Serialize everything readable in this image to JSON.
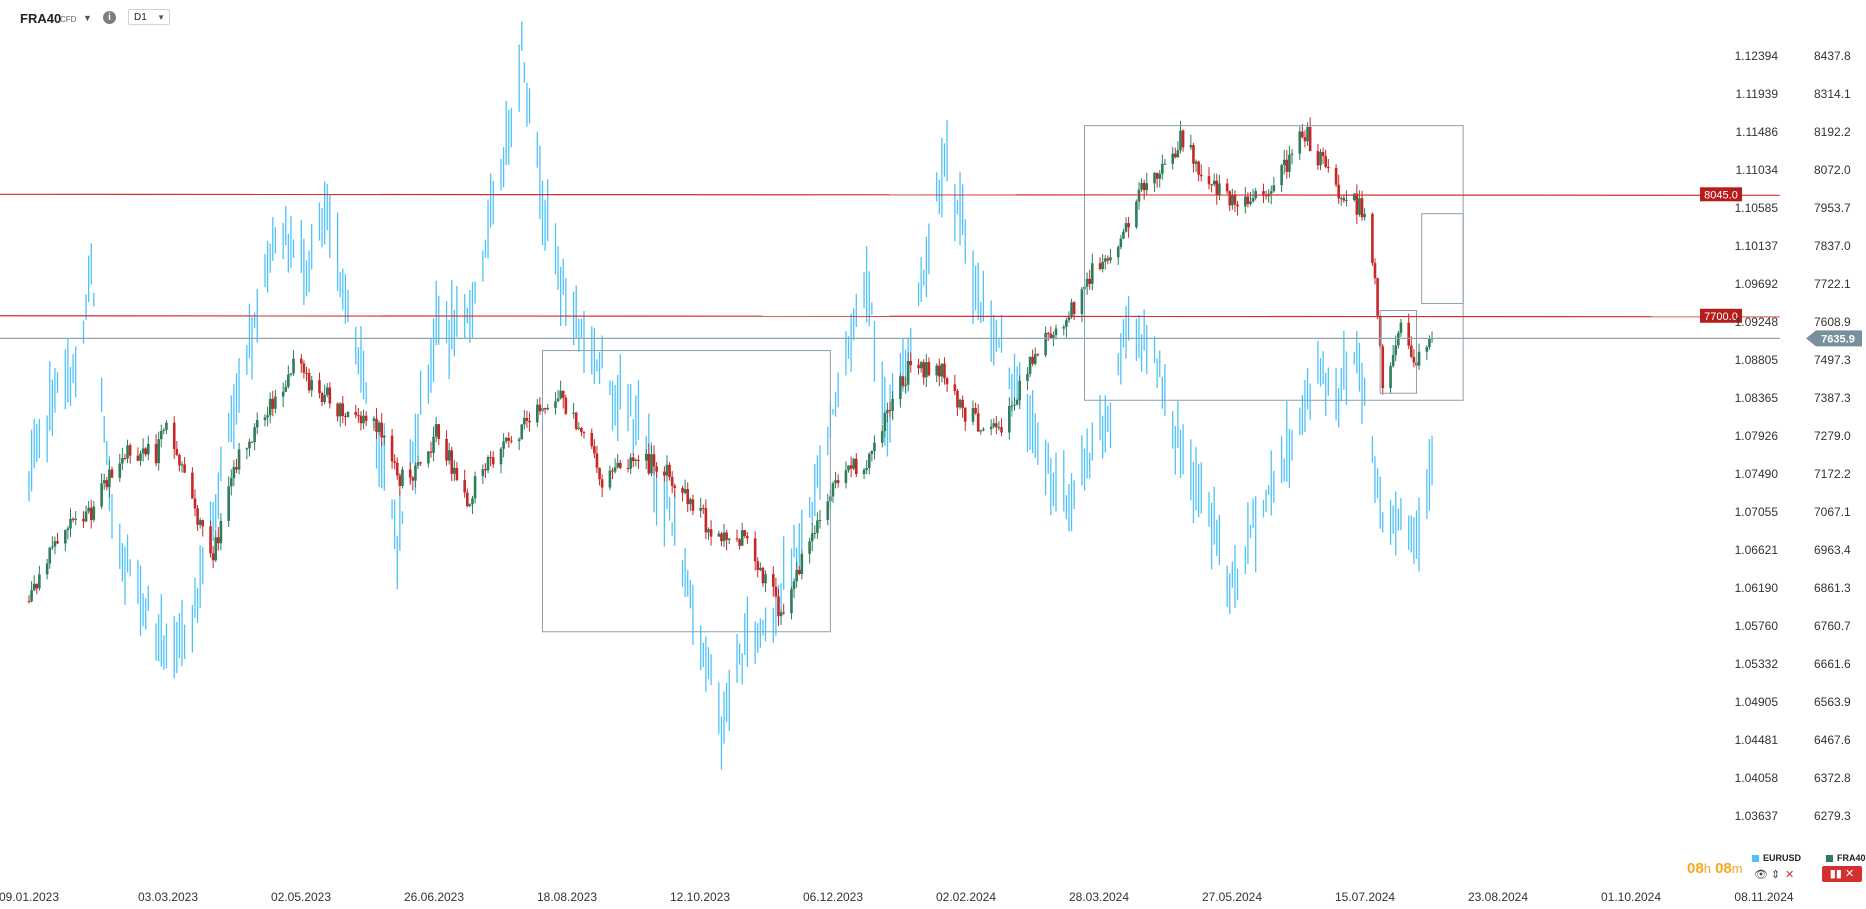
{
  "header": {
    "symbol": "FRA40",
    "symbol_type": "CFD",
    "timeframe": "D1"
  },
  "legend": {
    "eurusd": "EURUSD",
    "fra40": "FRA40"
  },
  "timer": {
    "hours": "08",
    "h": "h",
    "minutes": "08",
    "m": "m"
  },
  "colors": {
    "eurusd_line": "#4fc3f7",
    "bull": "#2e7d5b",
    "bear": "#c62828",
    "level_line": "#d32f2f",
    "current_line": "#90a4ae",
    "box": "#8aa0ae"
  },
  "chart_data": {
    "type": "candlestick",
    "x_ticks": [
      "09.01.2023",
      "03.03.2023",
      "02.05.2023",
      "26.06.2023",
      "18.08.2023",
      "12.10.2023",
      "06.12.2023",
      "02.02.2024",
      "28.03.2024",
      "27.05.2024",
      "15.07.2024",
      "23.08.2024",
      "01.10.2024",
      "08.11.2024"
    ],
    "eurusd_axis": [
      "1.12394",
      "1.11939",
      "1.11486",
      "1.11034",
      "1.10585",
      "1.10137",
      "1.09692",
      "1.09248",
      "1.08805",
      "1.08365",
      "1.07926",
      "1.07490",
      "1.07055",
      "1.06621",
      "1.06190",
      "1.05760",
      "1.05332",
      "1.04905",
      "1.04481",
      "1.04058",
      "1.03637"
    ],
    "fra40_axis": [
      "8437.8",
      "8314.1",
      "8192.2",
      "8072.0",
      "7953.7",
      "7837.0",
      "7722.1",
      "7608.9",
      "7497.3",
      "7387.3",
      "7279.0",
      "7172.2",
      "7067.1",
      "6963.4",
      "6861.3",
      "6760.7",
      "6661.6",
      "6563.9",
      "6467.6",
      "6372.8",
      "6279.3"
    ],
    "levels": [
      {
        "label": "8045.0",
        "value": 8045.0
      },
      {
        "label": "7700.0",
        "value": 7700.0
      }
    ],
    "current_price": {
      "label": "7635.9",
      "value": 7635.9
    },
    "series": [
      {
        "name": "EURUSD",
        "style": "line",
        "anchors": [
          [
            "09.01.2023",
            1.0745
          ],
          [
            "18.01.2023",
            1.0845
          ],
          [
            "28.01.2023",
            1.088
          ],
          [
            "02.02.2023",
            1.099
          ],
          [
            "10.02.2023",
            1.07
          ],
          [
            "24.02.2023",
            1.06
          ],
          [
            "06.03.2023",
            1.054
          ],
          [
            "15.03.2023",
            1.062
          ],
          [
            "31.03.2023",
            1.086
          ],
          [
            "14.04.2023",
            1.104
          ],
          [
            "26.04.2023",
            1.1
          ],
          [
            "04.05.2023",
            1.105
          ],
          [
            "22.05.2023",
            1.082
          ],
          [
            "31.05.2023",
            1.068
          ],
          [
            "15.06.2023",
            1.093
          ],
          [
            "26.06.2023",
            1.092
          ],
          [
            "10.07.2023",
            1.11
          ],
          [
            "18.07.2023",
            1.125
          ],
          [
            "26.07.2023",
            1.108
          ],
          [
            "03.08.2023",
            1.097
          ],
          [
            "14.08.2023",
            1.09
          ],
          [
            "01.09.2023",
            1.081
          ],
          [
            "12.09.2023",
            1.072
          ],
          [
            "25.09.2023",
            1.057
          ],
          [
            "03.10.2023",
            1.047
          ],
          [
            "12.10.2023",
            1.056
          ],
          [
            "23.10.2023",
            1.06
          ],
          [
            "06.11.2023",
            1.071
          ],
          [
            "20.11.2023",
            1.09
          ],
          [
            "28.11.2023",
            1.099
          ],
          [
            "06.12.2023",
            1.08
          ],
          [
            "20.12.2023",
            1.099
          ],
          [
            "28.12.2023",
            1.113
          ],
          [
            "10.01.2024",
            1.096
          ],
          [
            "22.01.2024",
            1.088
          ],
          [
            "02.02.2024",
            1.079
          ],
          [
            "14.02.2024",
            1.072
          ],
          [
            "01.03.2024",
            1.083
          ],
          [
            "08.03.2024",
            1.094
          ],
          [
            "20.03.2024",
            1.088
          ],
          [
            "28.03.2024",
            1.078
          ],
          [
            "10.04.2024",
            1.07
          ],
          [
            "16.04.2024",
            1.062
          ],
          [
            "25.04.2024",
            1.07
          ],
          [
            "08.05.2024",
            1.078
          ],
          [
            "20.05.2024",
            1.088
          ],
          [
            "27.05.2024",
            1.085
          ],
          [
            "04.06.2024",
            1.09
          ],
          [
            "14.06.2024",
            1.071
          ],
          [
            "21.06.2024",
            1.071
          ],
          [
            "27.06.2024",
            1.069
          ],
          [
            "03.07.2024",
            1.078
          ]
        ]
      },
      {
        "name": "FRA40",
        "style": "candlestick",
        "anchors": [
          [
            "09.01.2023",
            6890
          ],
          [
            "20.01.2023",
            7060
          ],
          [
            "02.02.2023",
            7150
          ],
          [
            "16.02.2023",
            7320
          ],
          [
            "27.02.2023",
            7310
          ],
          [
            "03.03.2023",
            7380
          ],
          [
            "13.03.2023",
            7190
          ],
          [
            "20.03.2023",
            7000
          ],
          [
            "31.03.2023",
            7300
          ],
          [
            "14.04.2023",
            7470
          ],
          [
            "21.04.2023",
            7560
          ],
          [
            "02.05.2023",
            7480
          ],
          [
            "12.05.2023",
            7420
          ],
          [
            "22.05.2023",
            7410
          ],
          [
            "31.05.2023",
            7240
          ],
          [
            "09.06.2023",
            7260
          ],
          [
            "16.06.2023",
            7380
          ],
          [
            "26.06.2023",
            7170
          ],
          [
            "05.07.2023",
            7270
          ],
          [
            "12.07.2023",
            7330
          ],
          [
            "31.07.2023",
            7480
          ],
          [
            "11.08.2023",
            7380
          ],
          [
            "18.08.2023",
            7230
          ],
          [
            "01.09.2023",
            7300
          ],
          [
            "12.09.2023",
            7250
          ],
          [
            "22.09.2023",
            7160
          ],
          [
            "03.10.2023",
            7060
          ],
          [
            "12.10.2023",
            7080
          ],
          [
            "26.10.2023",
            6860
          ],
          [
            "06.11.2023",
            7050
          ],
          [
            "17.11.2023",
            7250
          ],
          [
            "30.11.2023",
            7300
          ],
          [
            "06.12.2023",
            7440
          ],
          [
            "15.12.2023",
            7560
          ],
          [
            "28.12.2023",
            7540
          ],
          [
            "05.01.2024",
            7420
          ],
          [
            "18.01.2024",
            7370
          ],
          [
            "02.02.2024",
            7600
          ],
          [
            "15.02.2024",
            7720
          ],
          [
            "22.02.2024",
            7810
          ],
          [
            "05.03.2024",
            7920
          ],
          [
            "13.03.2024",
            8050
          ],
          [
            "28.03.2024",
            8200
          ],
          [
            "10.04.2024",
            8060
          ],
          [
            "19.04.2024",
            8000
          ],
          [
            "06.05.2024",
            8100
          ],
          [
            "15.05.2024",
            8220
          ],
          [
            "27.05.2024",
            8060
          ],
          [
            "07.06.2024",
            8000
          ],
          [
            "11.06.2024",
            7820
          ],
          [
            "14.06.2024",
            7500
          ],
          [
            "21.06.2024",
            7660
          ],
          [
            "27.06.2024",
            7560
          ],
          [
            "03.07.2024",
            7635.9
          ]
        ]
      }
    ],
    "annotations": [
      {
        "type": "rect",
        "from": "26.07.2023",
        "to": "14.11.2023",
        "top": 1.09,
        "bottom": 1.0576,
        "axis": "EURUSD"
      },
      {
        "type": "rect",
        "from": "20.02.2024",
        "to": "15.07.2024",
        "top": 8240,
        "bottom": 7460,
        "axis": "FRA40"
      },
      {
        "type": "rect",
        "from": "13.06.2024",
        "to": "27.06.2024",
        "top": 7715,
        "bottom": 7480,
        "axis": "FRA40"
      },
      {
        "type": "rect",
        "from": "29.06.2024",
        "to": "15.07.2024",
        "top": 7990,
        "bottom": 7735,
        "axis": "FRA40"
      }
    ]
  }
}
